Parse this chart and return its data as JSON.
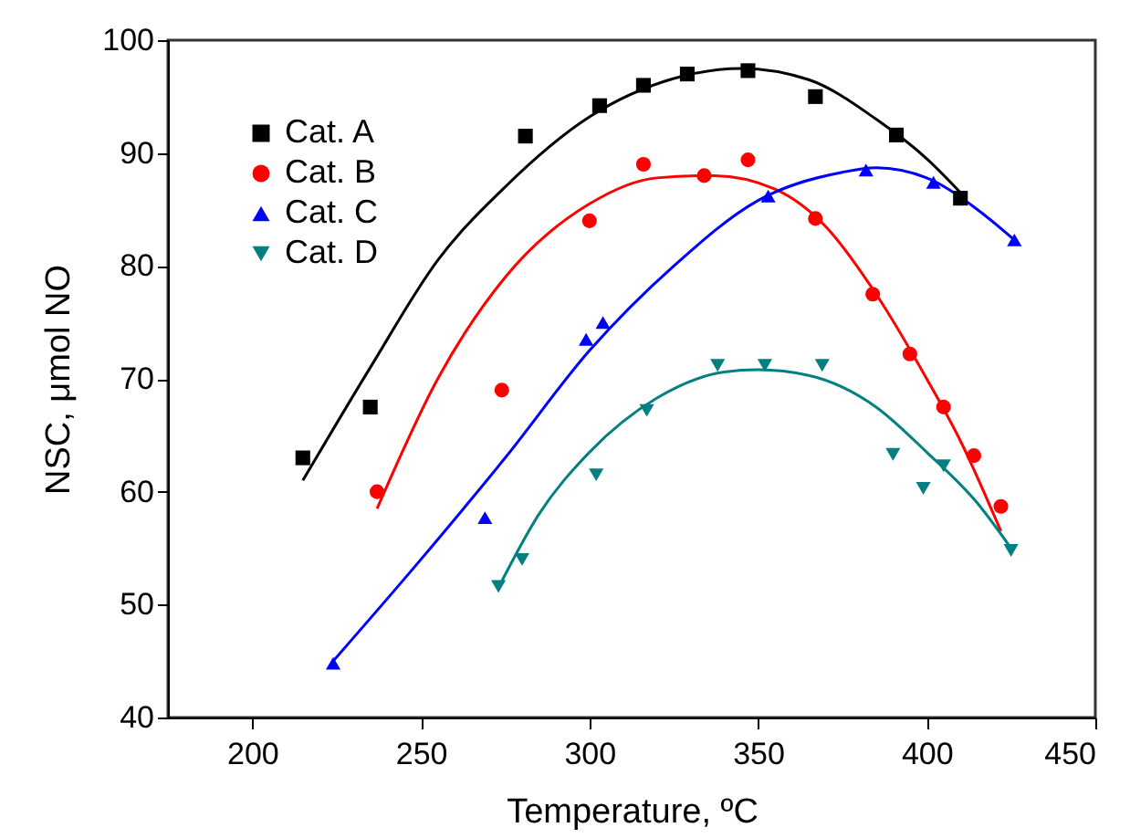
{
  "chart_data": {
    "type": "scatter",
    "xlabel": "Temperature, ºC",
    "ylabel": "NSC, μmol NO",
    "xlim": [
      175,
      450
    ],
    "ylim": [
      40,
      100
    ],
    "xticks": [
      200,
      250,
      300,
      350,
      400,
      450
    ],
    "yticks": [
      40,
      50,
      60,
      70,
      80,
      90,
      100
    ],
    "grid": false,
    "legend": "top left",
    "series": [
      {
        "name": "Cat. A",
        "color": "#000000",
        "marker": "square",
        "x": [
          215,
          235,
          281,
          303,
          316,
          329,
          347,
          367,
          391,
          410
        ],
        "values": [
          63,
          67.5,
          91.5,
          94.2,
          96,
          97,
          97.3,
          95,
          91.6,
          86
        ]
      },
      {
        "name": "Cat. B",
        "color": "#ff0000",
        "marker": "circle",
        "x": [
          237,
          274,
          300,
          316,
          334,
          347,
          367,
          384,
          395,
          405,
          414,
          422
        ],
        "values": [
          60,
          69,
          84,
          89,
          88,
          89.4,
          84.2,
          77.5,
          72.2,
          67.5,
          63.2,
          58.7
        ]
      },
      {
        "name": "Cat. C",
        "color": "#0000ff",
        "marker": "triangle",
        "x": [
          224,
          269,
          299,
          304,
          353,
          382,
          402,
          426
        ],
        "values": [
          44.8,
          57.7,
          73.5,
          75,
          86.2,
          88.5,
          87.4,
          82.3
        ]
      },
      {
        "name": "Cat. D",
        "color": "#008080",
        "marker": "triangle-down",
        "x": [
          273,
          280,
          302,
          317,
          338,
          352,
          369,
          390,
          399,
          405,
          425
        ],
        "values": [
          51.6,
          54,
          61.5,
          67.2,
          71.2,
          71.2,
          71.2,
          63.3,
          60.3,
          62.3,
          54.8
        ]
      },
      {
        "type": "line",
        "color": "#000000",
        "x": [
          215,
          235,
          255,
          275,
          300,
          325,
          345,
          365,
          385,
          400,
          410
        ],
        "values": [
          61,
          71,
          80.5,
          87,
          93.2,
          96.6,
          97.5,
          96.5,
          93,
          89.5,
          86.5
        ]
      },
      {
        "type": "line",
        "color": "#ff0000",
        "x": [
          237,
          255,
          275,
          300,
          320,
          337,
          355,
          370,
          385,
          400,
          410,
          422
        ],
        "values": [
          58.5,
          70,
          79,
          85.5,
          87.8,
          88,
          86.8,
          83.5,
          77.5,
          70,
          64.5,
          56.5
        ]
      },
      {
        "type": "line",
        "color": "#0000ff",
        "x": [
          224,
          250,
          275,
          300,
          325,
          350,
          375,
          385,
          400,
          415,
          426
        ],
        "values": [
          45,
          54,
          63,
          72.5,
          80,
          85.8,
          88.3,
          88.7,
          87.8,
          85,
          82.3
        ]
      },
      {
        "type": "line",
        "color": "#008080",
        "x": [
          273,
          285,
          300,
          320,
          340,
          350,
          365,
          385,
          400,
          415,
          425
        ],
        "values": [
          51.5,
          58,
          63.5,
          68.3,
          70.6,
          70.8,
          70.3,
          67.5,
          63.5,
          59,
          55
        ]
      }
    ]
  }
}
